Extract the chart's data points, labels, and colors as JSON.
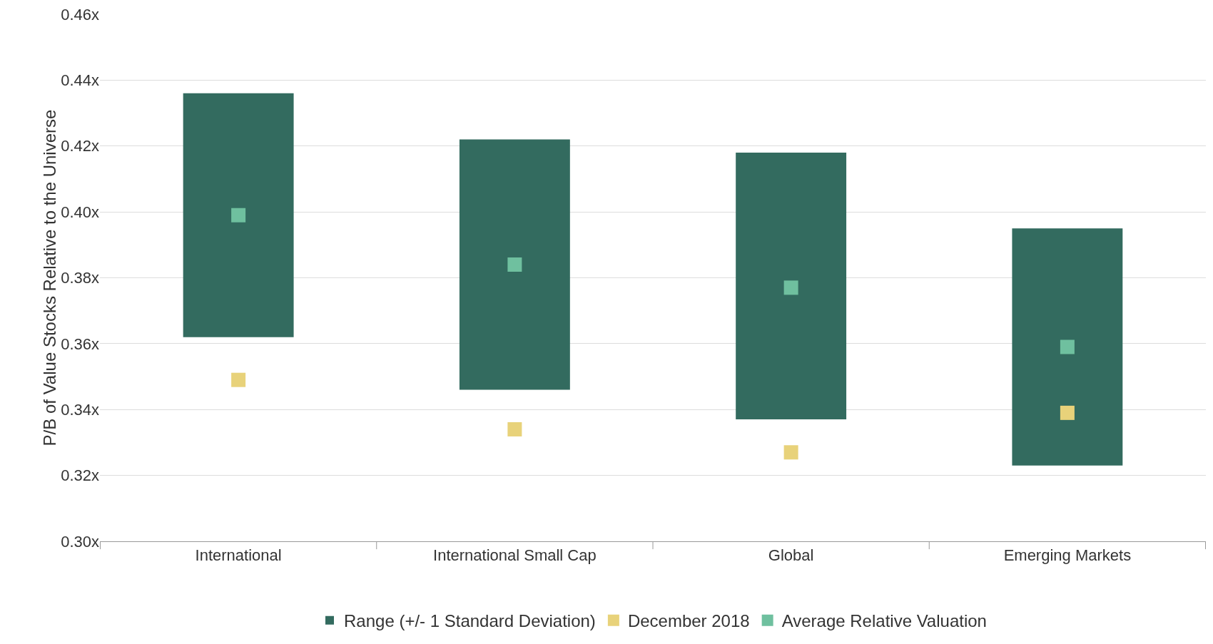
{
  "chart_data": {
    "type": "bar",
    "ylabel": "P/B of Value Stocks Relative to the Universe",
    "categories": [
      "International",
      "International Small Cap",
      "Global",
      "Emerging Markets"
    ],
    "series": [
      {
        "name": "Range (+/- 1 Standard Deviation)",
        "type": "bar",
        "color": "#336b5f",
        "base": [
          0.362,
          0.346,
          0.337,
          0.323
        ],
        "values": [
          0.074,
          0.076,
          0.081,
          0.072
        ]
      },
      {
        "name": "December 2018",
        "type": "scatter",
        "marker": "square",
        "color": "#e8d27a",
        "x": [
          "International",
          "International Small Cap",
          "Global",
          "Emerging Markets"
        ],
        "values": [
          0.349,
          0.334,
          0.327,
          0.339
        ]
      },
      {
        "name": "Average Relative Valuation",
        "type": "scatter",
        "marker": "square",
        "color": "#6fc09f",
        "x": [
          "International",
          "International Small Cap",
          "Global",
          "Emerging Markets"
        ],
        "values": [
          0.399,
          0.384,
          0.377,
          0.359
        ]
      }
    ],
    "ylim": [
      0.3,
      0.46
    ],
    "yticks": [
      {
        "value": 0.3,
        "label": "0.30x"
      },
      {
        "value": 0.32,
        "label": "0.32x"
      },
      {
        "value": 0.34,
        "label": "0.34x"
      },
      {
        "value": 0.36,
        "label": "0.36x"
      },
      {
        "value": 0.38,
        "label": "0.38x"
      },
      {
        "value": 0.4,
        "label": "0.40x"
      },
      {
        "value": 0.42,
        "label": "0.42x"
      },
      {
        "value": 0.44,
        "label": "0.44x"
      },
      {
        "value": 0.46,
        "label": "0.46x"
      }
    ],
    "grid": "y",
    "legend": "bottom"
  }
}
